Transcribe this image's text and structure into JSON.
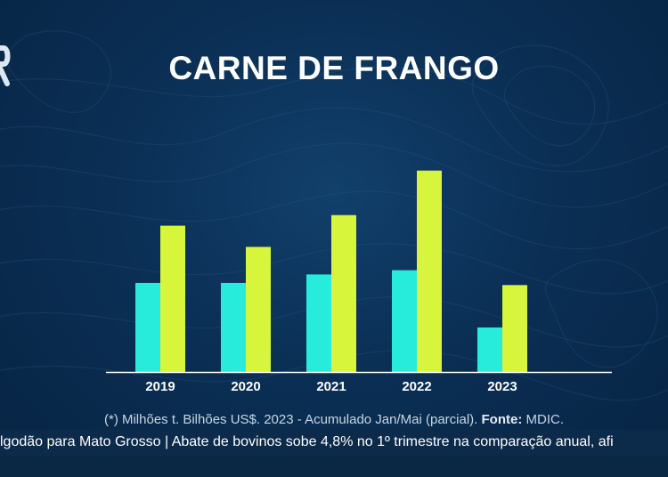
{
  "title": "CARNE DE FRANGO",
  "footnote": {
    "prefix": "(*) Milhões t. Bilhões US$. 2023 - Acumulado Jan/Mai (parcial).",
    "source_label": "Fonte:",
    "source_value": "MDIC."
  },
  "ticker_text": "lgodão para Mato Grosso | Abate de bovinos sobe 4,8% no 1º trimestre na comparação anual, afi",
  "colors": {
    "series_1": "#27ecdc",
    "series_2": "#d7f53a",
    "background": "#0b2f55"
  },
  "chart_data": {
    "type": "bar",
    "categories": [
      "2019",
      "2020",
      "2021",
      "2022",
      "2023"
    ],
    "series": [
      {
        "values": [
          4.2,
          4.2,
          4.6,
          4.8,
          2.1
        ]
      },
      {
        "values": [
          6.9,
          5.9,
          7.4,
          9.5,
          4.1
        ]
      }
    ],
    "ylim": [
      0,
      10.2
    ],
    "grid": false,
    "legend": "none"
  }
}
